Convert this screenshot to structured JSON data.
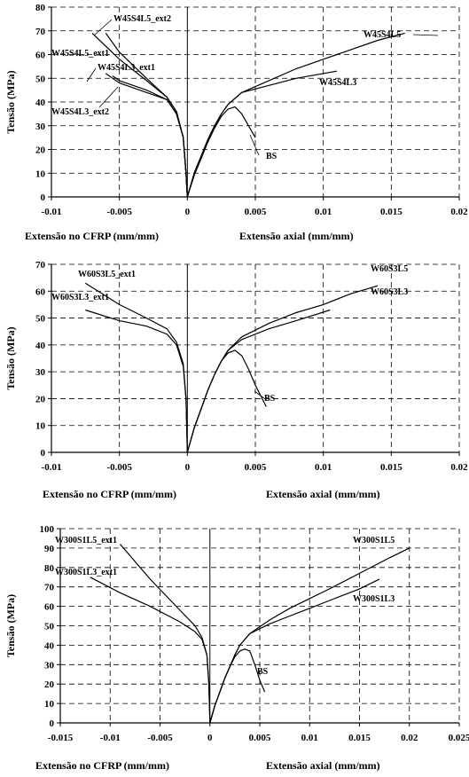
{
  "chart_data": [
    {
      "type": "line",
      "title": "",
      "ylabel": "Tensão (MPa)",
      "xlabel_left": "Extensão no CFRP (mm/mm)",
      "xlabel_right": "Extensão axial (mm/mm)",
      "xlim": [
        -0.01,
        0.02
      ],
      "ylim": [
        0,
        80
      ],
      "grid": true,
      "x_tick_labels": [
        "-0.01",
        "-0.005",
        "0",
        "0.005",
        "0.01",
        "0.015",
        "0.02"
      ],
      "x_tick_values": [
        -0.01,
        -0.005,
        0,
        0.005,
        0.01,
        0.015,
        0.02
      ],
      "y_tick_labels": [
        "0",
        "10",
        "20",
        "30",
        "40",
        "50",
        "60",
        "70",
        "80"
      ],
      "y_tick_values": [
        0,
        10,
        20,
        30,
        40,
        50,
        60,
        70,
        80
      ],
      "series": [
        {
          "name": "W45S4L5",
          "x": [
            0,
            0.0005,
            0.001,
            0.0015,
            0.002,
            0.0025,
            0.003,
            0.004,
            0.006,
            0.008,
            0.01,
            0.012,
            0.014,
            0.016
          ],
          "y": [
            0,
            10,
            17,
            24,
            30,
            35,
            39,
            44,
            49,
            54,
            58,
            62,
            66,
            69
          ]
        },
        {
          "name": "W45S4L3",
          "x": [
            0,
            0.0005,
            0.001,
            0.0015,
            0.002,
            0.0025,
            0.003,
            0.004,
            0.006,
            0.008,
            0.011
          ],
          "y": [
            0,
            10,
            17,
            24,
            30,
            35,
            39,
            44,
            47,
            50,
            53
          ]
        },
        {
          "name": "BS",
          "x": [
            0,
            0.0005,
            0.001,
            0.0015,
            0.002,
            0.0025,
            0.003,
            0.0035,
            0.004,
            0.0045,
            0.005
          ],
          "y": [
            0,
            9,
            16,
            23,
            29,
            34,
            37,
            38,
            35,
            30,
            25
          ]
        },
        {
          "name": "W45S4L5_ext2",
          "x": [
            0,
            -0.0001,
            -0.0003,
            -0.0008,
            -0.0015,
            -0.003,
            -0.005,
            -0.006
          ],
          "y": [
            0,
            10,
            25,
            36,
            42,
            50,
            61,
            69
          ]
        },
        {
          "name": "W45S4L5_ext1",
          "x": [
            0,
            -0.0001,
            -0.0003,
            -0.0008,
            -0.0015,
            -0.003,
            -0.005,
            -0.007
          ],
          "y": [
            0,
            10,
            25,
            36,
            42,
            49,
            58,
            69
          ]
        },
        {
          "name": "W45S4L3_ext1",
          "x": [
            0,
            -0.0001,
            -0.0003,
            -0.0008,
            -0.0015,
            -0.003,
            -0.005,
            -0.0055
          ],
          "y": [
            0,
            10,
            25,
            35,
            41,
            45,
            49,
            51
          ]
        },
        {
          "name": "W45S4L3_ext2",
          "x": [
            0,
            -0.0001,
            -0.0003,
            -0.0008,
            -0.0015,
            -0.003,
            -0.005,
            -0.006
          ],
          "y": [
            0,
            10,
            25,
            35,
            41,
            44,
            48,
            52
          ]
        }
      ]
    },
    {
      "type": "line",
      "title": "",
      "ylabel": "Tensão (MPa)",
      "xlabel_left": "Extensão no CFRP (mm/mm)",
      "xlabel_right": "Extensão axial (mm/mm)",
      "xlim": [
        -0.01,
        0.02
      ],
      "ylim": [
        0,
        70
      ],
      "grid": true,
      "x_tick_labels": [
        "-0.01",
        "-0.005",
        "0",
        "0.005",
        "0.01",
        "0.015",
        "0.02"
      ],
      "x_tick_values": [
        -0.01,
        -0.005,
        0,
        0.005,
        0.01,
        0.015,
        0.02
      ],
      "y_tick_labels": [
        "0",
        "10",
        "20",
        "30",
        "40",
        "50",
        "60",
        "70"
      ],
      "y_tick_values": [
        0,
        10,
        20,
        30,
        40,
        50,
        60,
        70
      ],
      "series": [
        {
          "name": "W60S3L5",
          "x": [
            0,
            0.0005,
            0.001,
            0.0015,
            0.002,
            0.0025,
            0.003,
            0.004,
            0.006,
            0.008,
            0.01,
            0.012,
            0.014
          ],
          "y": [
            0,
            9,
            16,
            23,
            29,
            34,
            38,
            43,
            48,
            52,
            55,
            59,
            62
          ]
        },
        {
          "name": "W60S3L3",
          "x": [
            0,
            0.0005,
            0.001,
            0.0015,
            0.002,
            0.0025,
            0.003,
            0.004,
            0.006,
            0.008,
            0.0105
          ],
          "y": [
            0,
            9,
            16,
            23,
            29,
            34,
            38,
            42,
            46,
            49,
            53
          ]
        },
        {
          "name": "BS",
          "x": [
            0,
            0.0005,
            0.001,
            0.0015,
            0.002,
            0.0025,
            0.003,
            0.0035,
            0.004,
            0.0045,
            0.005,
            0.0058
          ],
          "y": [
            0,
            9,
            16,
            23,
            29,
            34,
            37,
            38,
            36,
            31,
            25,
            17
          ]
        },
        {
          "name": "W60S3L5_ext1",
          "x": [
            0,
            -5e-05,
            -0.0001,
            -0.0003,
            -0.0008,
            -0.0015,
            -0.003,
            -0.005,
            -0.0075
          ],
          "y": [
            0,
            10,
            20,
            33,
            41,
            46,
            50,
            55,
            63
          ]
        },
        {
          "name": "W60S3L3_ext1",
          "x": [
            0,
            -5e-05,
            -0.0001,
            -0.0003,
            -0.0008,
            -0.0015,
            -0.003,
            -0.005,
            -0.0075
          ],
          "y": [
            0,
            10,
            20,
            32,
            40,
            44,
            47,
            49,
            53
          ]
        }
      ]
    },
    {
      "type": "line",
      "title": "",
      "ylabel": "Tensão (MPa)",
      "xlabel_left": "Extensão no CFRP (mm/mm)",
      "xlabel_right": "Extensão axial (mm/mm)",
      "xlim": [
        -0.015,
        0.025
      ],
      "ylim": [
        0,
        100
      ],
      "grid": true,
      "x_tick_labels": [
        "-0.015",
        "-0.01",
        "-0.005",
        "0",
        "0.005",
        "0.01",
        "0.015",
        "0.02",
        "0.025"
      ],
      "x_tick_values": [
        -0.015,
        -0.01,
        -0.005,
        0,
        0.005,
        0.01,
        0.015,
        0.02,
        0.025
      ],
      "y_tick_labels": [
        "0",
        "10",
        "20",
        "30",
        "40",
        "50",
        "60",
        "70",
        "80",
        "90",
        "100"
      ],
      "y_tick_values": [
        0,
        10,
        20,
        30,
        40,
        50,
        60,
        70,
        80,
        90,
        100
      ],
      "series": [
        {
          "name": "W300S1L5",
          "x": [
            0,
            0.0005,
            0.001,
            0.0015,
            0.002,
            0.0025,
            0.003,
            0.004,
            0.006,
            0.008,
            0.01,
            0.012,
            0.015,
            0.018,
            0.02
          ],
          "y": [
            0,
            9,
            16,
            23,
            29,
            35,
            40,
            46,
            53,
            59,
            64,
            69,
            77,
            85,
            90
          ]
        },
        {
          "name": "W300S1L3",
          "x": [
            0,
            0.0005,
            0.001,
            0.0015,
            0.002,
            0.0025,
            0.003,
            0.004,
            0.006,
            0.008,
            0.01,
            0.012,
            0.015,
            0.017
          ],
          "y": [
            0,
            9,
            16,
            23,
            29,
            35,
            40,
            46,
            51,
            55,
            59,
            63,
            69,
            74
          ]
        },
        {
          "name": "BS",
          "x": [
            0,
            0.0005,
            0.001,
            0.0015,
            0.002,
            0.0025,
            0.003,
            0.0035,
            0.004,
            0.0045,
            0.005,
            0.0055
          ],
          "y": [
            0,
            9,
            16,
            23,
            29,
            34,
            37,
            38,
            37,
            30,
            22,
            16
          ]
        },
        {
          "name": "W300S1L5_ext1",
          "x": [
            0,
            -5e-05,
            -0.0001,
            -0.0003,
            -0.0008,
            -0.0015,
            -0.003,
            -0.006,
            -0.009
          ],
          "y": [
            0,
            10,
            20,
            35,
            44,
            50,
            58,
            74,
            92
          ]
        },
        {
          "name": "W300S1L3_ext1",
          "x": [
            0,
            -5e-05,
            -0.0001,
            -0.0003,
            -0.0008,
            -0.0015,
            -0.003,
            -0.006,
            -0.009,
            -0.012
          ],
          "y": [
            0,
            10,
            20,
            35,
            43,
            47,
            52,
            60,
            67,
            75
          ]
        }
      ]
    }
  ]
}
